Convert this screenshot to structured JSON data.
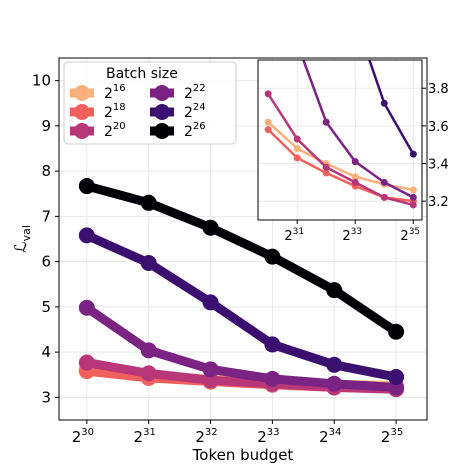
{
  "chart_data": [
    {
      "type": "line",
      "xlabel": "Token budget",
      "ylabel": "ℒ",
      "ylabel_sub": "val",
      "x_exponents": [
        30,
        31,
        32,
        33,
        34,
        35
      ],
      "x_tick_labels": [
        "2",
        "2",
        "2",
        "2",
        "2",
        "2"
      ],
      "x_tick_exps": [
        "30",
        "31",
        "32",
        "33",
        "34",
        "35"
      ],
      "ylim": [
        2.5,
        10.5
      ],
      "y_ticks": [
        3,
        4,
        5,
        6,
        7,
        8,
        9,
        10
      ],
      "y_tick_labels": [
        "3",
        "4",
        "5",
        "6",
        "7",
        "8",
        "9",
        "10"
      ],
      "grid": true,
      "legend": {
        "title": "Batch size",
        "placement": "top-left"
      },
      "series": [
        {
          "name": "2",
          "exp": "16",
          "color": "#fcb07a",
          "values": [
            3.62,
            3.48,
            3.4,
            3.33,
            3.29,
            3.26
          ]
        },
        {
          "name": "2",
          "exp": "18",
          "color": "#f0605d",
          "values": [
            3.58,
            3.43,
            3.35,
            3.28,
            3.22,
            3.2
          ]
        },
        {
          "name": "2",
          "exp": "20",
          "color": "#b83779",
          "values": [
            3.77,
            3.53,
            3.38,
            3.3,
            3.22,
            3.18
          ]
        },
        {
          "name": "2",
          "exp": "22",
          "color": "#7b2382",
          "values": [
            4.98,
            4.04,
            3.62,
            3.41,
            3.3,
            3.22
          ]
        },
        {
          "name": "2",
          "exp": "24",
          "color": "#3b0f70",
          "values": [
            6.58,
            5.97,
            5.1,
            4.17,
            3.72,
            3.45
          ]
        },
        {
          "name": "2",
          "exp": "26",
          "color": "#000004",
          "values": [
            7.67,
            7.3,
            6.75,
            6.11,
            5.37,
            4.45
          ]
        }
      ]
    },
    {
      "type": "line",
      "role": "inset",
      "x_exponents": [
        30,
        31,
        32,
        33,
        34,
        35
      ],
      "x_tick_labels": [
        "2",
        "2",
        "2"
      ],
      "x_tick_exps": [
        "31",
        "33",
        "35"
      ],
      "x_tick_positions": [
        31,
        33,
        35
      ],
      "ylim": [
        3.1,
        3.95
      ],
      "y_ticks": [
        3.2,
        3.4,
        3.6,
        3.8
      ],
      "y_tick_labels": [
        "3.2",
        "3.4",
        "3.6",
        "3.8"
      ],
      "grid": true
    }
  ]
}
